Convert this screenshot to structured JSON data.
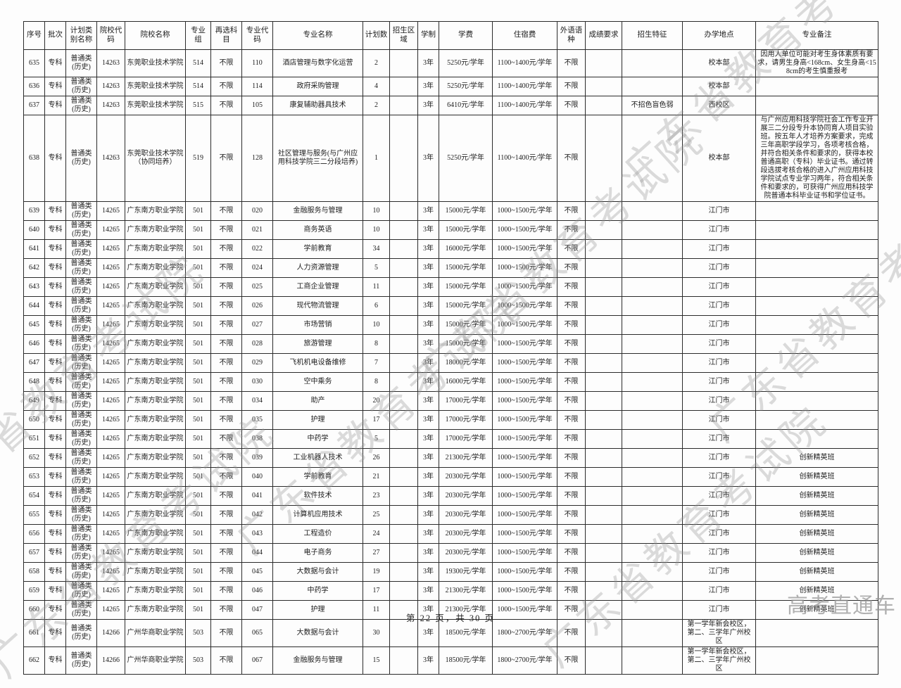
{
  "watermarks": {
    "page_text": "广东省教育考试院",
    "brand": "高考直通车"
  },
  "footer": {
    "text": "第 22 页，共 30 页"
  },
  "table": {
    "headers": [
      "序号",
      "批次",
      "计划类别名称",
      "院校代码",
      "院校名称",
      "专业组",
      "再选科目",
      "专业代码",
      "专业名称",
      "计划数",
      "招生区域",
      "学制",
      "学费",
      "住宿费",
      "外语语种",
      "成绩要求",
      "招生特征",
      "办学地点",
      "专业备注"
    ],
    "rows": [
      [
        "635",
        "专科",
        "普通类(历史)",
        "14263",
        "东莞职业技术学院",
        "514",
        "不限",
        "110",
        "酒店管理与数字化运营",
        "2",
        "",
        "3年",
        "5250元/学年",
        "1100~1400元/学年",
        "不限",
        "",
        "",
        "校本部",
        "因用人单位可能对考生身体素质有要求，请男生身高<168cm、女生身高<158cm的考生慎重报考"
      ],
      [
        "636",
        "专科",
        "普通类(历史)",
        "14263",
        "东莞职业技术学院",
        "514",
        "不限",
        "114",
        "政府采购管理",
        "4",
        "",
        "3年",
        "5250元/学年",
        "1100~1400元/学年",
        "不限",
        "",
        "",
        "校本部",
        ""
      ],
      [
        "637",
        "专科",
        "普通类(历史)",
        "14263",
        "东莞职业技术学院",
        "515",
        "不限",
        "105",
        "康复辅助器具技术",
        "2",
        "",
        "3年",
        "6410元/学年",
        "1100~1400元/学年",
        "不限",
        "",
        "不招色盲色弱",
        "西校区",
        ""
      ],
      [
        "638",
        "专科",
        "普通类(历史)",
        "14263",
        "东莞职业技术学院（协同培养）",
        "519",
        "不限",
        "128",
        "社区管理与服务(与广州应用科技学院三二分段培养)",
        "1",
        "",
        "3年",
        "5250元/学年",
        "1100~1400元/学年",
        "不限",
        "",
        "",
        "校本部",
        "与广州应用科技学院社会工作专业开展三二分段专升本协同育人项目实验班。按五年人才培养方案要求，完成三年高职学段学习，各项考核合格，并符合相关条件和要求的，获得本校普通高职（专科）毕业证书。通过转段选拔考核合格的进入广州应用科技学院试点专业学习两年，符合相关条件和要求的，可获得广州应用科技学院普通本科毕业证书和学位证书。"
      ],
      [
        "639",
        "专科",
        "普通类(历史)",
        "14265",
        "广东南方职业学院",
        "501",
        "不限",
        "020",
        "金融服务与管理",
        "10",
        "",
        "3年",
        "15000元/学年",
        "1000~1500元/学年",
        "不限",
        "",
        "",
        "江门市",
        ""
      ],
      [
        "640",
        "专科",
        "普通类(历史)",
        "14265",
        "广东南方职业学院",
        "501",
        "不限",
        "021",
        "商务英语",
        "10",
        "",
        "3年",
        "15000元/学年",
        "1000~1500元/学年",
        "不限",
        "",
        "",
        "江门市",
        ""
      ],
      [
        "641",
        "专科",
        "普通类(历史)",
        "14265",
        "广东南方职业学院",
        "501",
        "不限",
        "022",
        "学前教育",
        "34",
        "",
        "3年",
        "16000元/学年",
        "1000~1500元/学年",
        "不限",
        "",
        "",
        "江门市",
        ""
      ],
      [
        "642",
        "专科",
        "普通类(历史)",
        "14265",
        "广东南方职业学院",
        "501",
        "不限",
        "024",
        "人力资源管理",
        "5",
        "",
        "3年",
        "15000元/学年",
        "1000~1500元/学年",
        "不限",
        "",
        "",
        "江门市",
        ""
      ],
      [
        "643",
        "专科",
        "普通类(历史)",
        "14265",
        "广东南方职业学院",
        "501",
        "不限",
        "025",
        "工商企业管理",
        "11",
        "",
        "3年",
        "15000元/学年",
        "1000~1500元/学年",
        "不限",
        "",
        "",
        "江门市",
        ""
      ],
      [
        "644",
        "专科",
        "普通类(历史)",
        "14265",
        "广东南方职业学院",
        "501",
        "不限",
        "026",
        "现代物流管理",
        "6",
        "",
        "3年",
        "15000元/学年",
        "1000~1500元/学年",
        "不限",
        "",
        "",
        "江门市",
        ""
      ],
      [
        "645",
        "专科",
        "普通类(历史)",
        "14265",
        "广东南方职业学院",
        "501",
        "不限",
        "027",
        "市场营销",
        "10",
        "",
        "3年",
        "15000元/学年",
        "1000~1500元/学年",
        "不限",
        "",
        "",
        "江门市",
        ""
      ],
      [
        "646",
        "专科",
        "普通类(历史)",
        "14265",
        "广东南方职业学院",
        "501",
        "不限",
        "028",
        "旅游管理",
        "8",
        "",
        "3年",
        "15000元/学年",
        "1000~1500元/学年",
        "不限",
        "",
        "",
        "江门市",
        ""
      ],
      [
        "647",
        "专科",
        "普通类(历史)",
        "14265",
        "广东南方职业学院",
        "501",
        "不限",
        "029",
        "飞机机电设备维修",
        "7",
        "",
        "3年",
        "18000元/学年",
        "1000~1500元/学年",
        "不限",
        "",
        "",
        "江门市",
        ""
      ],
      [
        "648",
        "专科",
        "普通类(历史)",
        "14265",
        "广东南方职业学院",
        "501",
        "不限",
        "030",
        "空中乘务",
        "8",
        "",
        "3年",
        "16000元/学年",
        "1000~1500元/学年",
        "不限",
        "",
        "",
        "江门市",
        ""
      ],
      [
        "649",
        "专科",
        "普通类(历史)",
        "14265",
        "广东南方职业学院",
        "501",
        "不限",
        "034",
        "助产",
        "20",
        "",
        "3年",
        "17000元/学年",
        "1000~1500元/学年",
        "不限",
        "",
        "",
        "江门市",
        ""
      ],
      [
        "650",
        "专科",
        "普通类(历史)",
        "14265",
        "广东南方职业学院",
        "501",
        "不限",
        "035",
        "护理",
        "17",
        "",
        "3年",
        "17000元/学年",
        "1000~1500元/学年",
        "不限",
        "",
        "",
        "江门市",
        ""
      ],
      [
        "651",
        "专科",
        "普通类(历史)",
        "14265",
        "广东南方职业学院",
        "501",
        "不限",
        "038",
        "中药学",
        "5",
        "",
        "3年",
        "17000元/学年",
        "1000~1500元/学年",
        "不限",
        "",
        "",
        "江门市",
        ""
      ],
      [
        "652",
        "专科",
        "普通类(历史)",
        "14265",
        "广东南方职业学院",
        "501",
        "不限",
        "039",
        "工业机器人技术",
        "26",
        "",
        "3年",
        "21300元/学年",
        "1000~1500元/学年",
        "不限",
        "",
        "",
        "江门市",
        "创新精英班"
      ],
      [
        "653",
        "专科",
        "普通类(历史)",
        "14265",
        "广东南方职业学院",
        "501",
        "不限",
        "040",
        "学前教育",
        "21",
        "",
        "3年",
        "20300元/学年",
        "1000~1500元/学年",
        "不限",
        "",
        "",
        "江门市",
        "创新精英班"
      ],
      [
        "654",
        "专科",
        "普通类(历史)",
        "14265",
        "广东南方职业学院",
        "501",
        "不限",
        "041",
        "软件技术",
        "23",
        "",
        "3年",
        "20300元/学年",
        "1000~1500元/学年",
        "不限",
        "",
        "",
        "江门市",
        "创新精英班"
      ],
      [
        "655",
        "专科",
        "普通类(历史)",
        "14265",
        "广东南方职业学院",
        "501",
        "不限",
        "042",
        "计算机应用技术",
        "25",
        "",
        "3年",
        "20300元/学年",
        "1000~1500元/学年",
        "不限",
        "",
        "",
        "江门市",
        "创新精英班"
      ],
      [
        "656",
        "专科",
        "普通类(历史)",
        "14265",
        "广东南方职业学院",
        "501",
        "不限",
        "043",
        "工程造价",
        "24",
        "",
        "3年",
        "20300元/学年",
        "1000~1500元/学年",
        "不限",
        "",
        "",
        "江门市",
        "创新精英班"
      ],
      [
        "657",
        "专科",
        "普通类(历史)",
        "14265",
        "广东南方职业学院",
        "501",
        "不限",
        "044",
        "电子商务",
        "27",
        "",
        "3年",
        "20300元/学年",
        "1000~1500元/学年",
        "不限",
        "",
        "",
        "江门市",
        "创新精英班"
      ],
      [
        "658",
        "专科",
        "普通类(历史)",
        "14265",
        "广东南方职业学院",
        "501",
        "不限",
        "045",
        "大数据与会计",
        "19",
        "",
        "3年",
        "19300元/学年",
        "1000~1500元/学年",
        "不限",
        "",
        "",
        "江门市",
        "创新精英班"
      ],
      [
        "659",
        "专科",
        "普通类(历史)",
        "14265",
        "广东南方职业学院",
        "501",
        "不限",
        "046",
        "中药学",
        "17",
        "",
        "3年",
        "21300元/学年",
        "1000~1500元/学年",
        "不限",
        "",
        "",
        "江门市",
        "创新精英班"
      ],
      [
        "660",
        "专科",
        "普通类(历史)",
        "14265",
        "广东南方职业学院",
        "501",
        "不限",
        "047",
        "护理",
        "11",
        "",
        "3年",
        "21300元/学年",
        "1000~1500元/学年",
        "不限",
        "",
        "",
        "江门市",
        "创新精英班"
      ],
      [
        "661",
        "专科",
        "普通类(历史)",
        "14266",
        "广州华商职业学院",
        "503",
        "不限",
        "065",
        "大数据与会计",
        "30",
        "",
        "3年",
        "18500元/学年",
        "1800~2700元/学年",
        "不限",
        "",
        "",
        "第一学年新会校区，第二、三学年广州校区",
        ""
      ],
      [
        "662",
        "专科",
        "普通类(历史)",
        "14266",
        "广州华商职业学院",
        "503",
        "不限",
        "067",
        "金融服务与管理",
        "15",
        "",
        "3年",
        "18500元/学年",
        "1800~2700元/学年",
        "不限",
        "",
        "",
        "第一学年新会校区，第二、三学年广州校区",
        ""
      ]
    ]
  }
}
